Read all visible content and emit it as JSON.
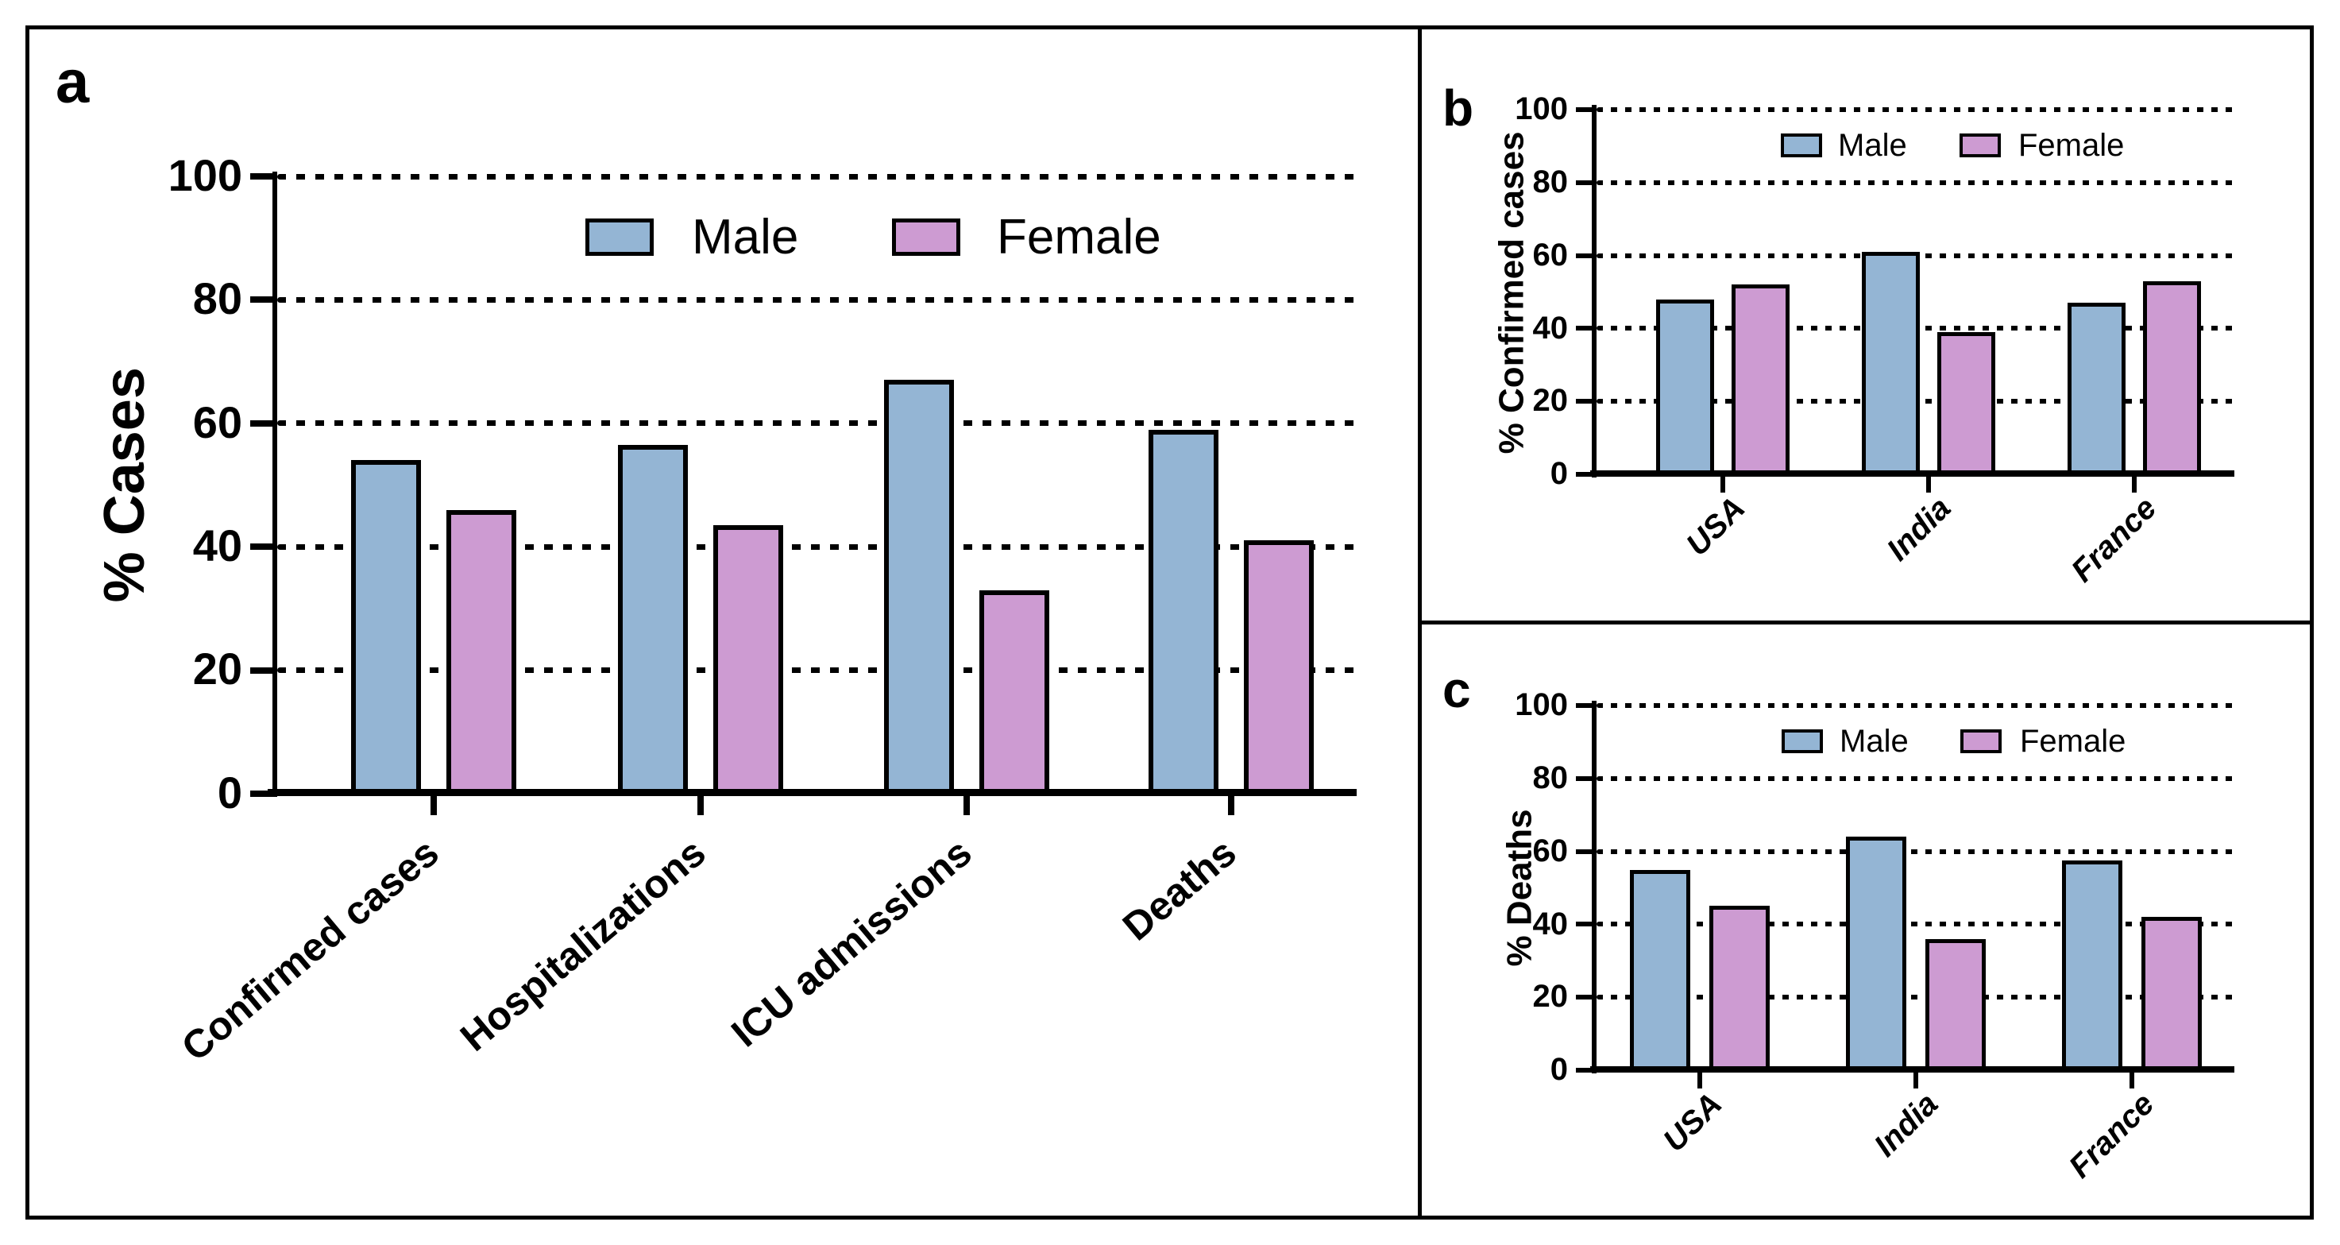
{
  "figure": {
    "background_color": "#FFFFFF",
    "border_color": "#000000",
    "male_color": "#94B5D4",
    "female_color": "#CD9BD2",
    "legend": {
      "male_label": "Male",
      "female_label": "Female"
    }
  },
  "chart_data": [
    {
      "id": "a",
      "type": "bar",
      "panel_label": "a",
      "title": "",
      "xlabel": "",
      "ylabel": "% Cases",
      "ylim": [
        0,
        100
      ],
      "yticks": [
        0,
        20,
        40,
        60,
        80,
        100
      ],
      "grid": "horizontal dotted",
      "legend_position": "inside top",
      "categories": [
        "Confirmed cases",
        "Hospitalizations",
        "ICU admissions",
        "Deaths"
      ],
      "series": [
        {
          "name": "Male",
          "color": "#94B5D4",
          "values": [
            54,
            56.5,
            67,
            59
          ]
        },
        {
          "name": "Female",
          "color": "#CD9BD2",
          "values": [
            46,
            43.5,
            33,
            41
          ]
        }
      ],
      "category_label_style": "bold, rotated 40deg",
      "bar_border_color": "#000000"
    },
    {
      "id": "b",
      "type": "bar",
      "panel_label": "b",
      "title": "",
      "xlabel": "",
      "ylabel": "% Confirmed cases",
      "ylim": [
        0,
        100
      ],
      "yticks": [
        0,
        20,
        40,
        60,
        80,
        100
      ],
      "grid": "horizontal dotted",
      "legend_position": "inside top",
      "categories": [
        "USA",
        "India",
        "France"
      ],
      "series": [
        {
          "name": "Male",
          "color": "#94B5D4",
          "values": [
            48,
            61,
            47
          ]
        },
        {
          "name": "Female",
          "color": "#CD9BD2",
          "values": [
            52,
            39,
            53
          ]
        }
      ],
      "category_label_style": "bold italic, rotated 45deg",
      "bar_border_color": "#000000"
    },
    {
      "id": "c",
      "type": "bar",
      "panel_label": "c",
      "title": "",
      "xlabel": "",
      "ylabel": "% Deaths",
      "ylim": [
        0,
        100
      ],
      "yticks": [
        0,
        20,
        40,
        60,
        80,
        100
      ],
      "grid": "horizontal dotted",
      "legend_position": "inside top",
      "categories": [
        "USA",
        "India",
        "France"
      ],
      "series": [
        {
          "name": "Male",
          "color": "#94B5D4",
          "values": [
            55,
            64,
            57.5
          ]
        },
        {
          "name": "Female",
          "color": "#CD9BD2",
          "values": [
            45,
            36,
            42
          ]
        }
      ],
      "category_label_style": "bold italic, rotated 45deg",
      "bar_border_color": "#000000"
    }
  ]
}
